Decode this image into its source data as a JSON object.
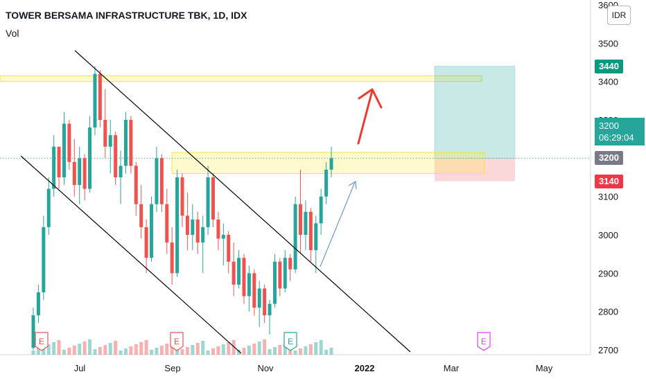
{
  "header": {
    "title": "TOWER BERSAMA INFRASTRUCTURE TBK, 1D, IDX",
    "indicator": "Vol"
  },
  "currency_button": "IDR",
  "price_tags": {
    "target": {
      "label": "3440",
      "value": 3440,
      "color": "#089981"
    },
    "current": {
      "label": "3200",
      "value": 3200,
      "color": "#787b86"
    },
    "stop": {
      "label": "3140",
      "value": 3140,
      "color": "#f23645"
    }
  },
  "current_tag": {
    "price": "3200",
    "countdown": "06:29:04"
  },
  "earnings_marker": "E",
  "chart_data": {
    "type": "candlestick",
    "title": "TOWER BERSAMA INFRASTRUCTURE TBK, 1D, IDX",
    "y_axis": {
      "min": 2700,
      "max": 3600,
      "ticks": [
        2700,
        2800,
        2900,
        3000,
        3100,
        3200,
        3300,
        3400,
        3500,
        3600
      ]
    },
    "x_axis": {
      "ticks": [
        "Jul",
        "Sep",
        "Nov",
        "2022",
        "Mar",
        "May"
      ]
    },
    "last_price": 3200,
    "ohlc_samples": [
      [
        2705,
        2810,
        2700,
        2790
      ],
      [
        2790,
        2870,
        2770,
        2850
      ],
      [
        2850,
        3050,
        2830,
        3020
      ],
      [
        3020,
        3150,
        3000,
        3120
      ],
      [
        3120,
        3260,
        3100,
        3230
      ],
      [
        3230,
        3220,
        3120,
        3150
      ],
      [
        3150,
        3320,
        3130,
        3290
      ],
      [
        3290,
        3300,
        3170,
        3190
      ],
      [
        3190,
        3250,
        3100,
        3130
      ],
      [
        3130,
        3230,
        3080,
        3200
      ],
      [
        3200,
        3210,
        3090,
        3120
      ],
      [
        3120,
        3310,
        3110,
        3280
      ],
      [
        3280,
        3440,
        3260,
        3420
      ],
      [
        3420,
        3430,
        3280,
        3300
      ],
      [
        3300,
        3380,
        3200,
        3230
      ],
      [
        3230,
        3300,
        3160,
        3260
      ],
      [
        3260,
        3270,
        3130,
        3150
      ],
      [
        3150,
        3220,
        3080,
        3180
      ],
      [
        3180,
        3320,
        3160,
        3300
      ],
      [
        3300,
        3310,
        3160,
        3180
      ],
      [
        3180,
        3190,
        3050,
        3080
      ],
      [
        3080,
        3130,
        2990,
        3020
      ],
      [
        3020,
        3040,
        2900,
        2940
      ],
      [
        2940,
        3100,
        2930,
        3080
      ],
      [
        3080,
        3230,
        3060,
        3200
      ],
      [
        3200,
        3210,
        3060,
        3080
      ],
      [
        3080,
        3120,
        2950,
        2980
      ],
      [
        2980,
        3020,
        2870,
        2900
      ],
      [
        2900,
        3170,
        2890,
        3150
      ],
      [
        3150,
        3160,
        3020,
        3050
      ],
      [
        3050,
        3110,
        2960,
        3000
      ],
      [
        3000,
        3080,
        2960,
        3040
      ],
      [
        3040,
        3060,
        2950,
        2980
      ],
      [
        2980,
        3050,
        2900,
        3020
      ],
      [
        3020,
        3180,
        3000,
        3150
      ],
      [
        3150,
        3160,
        3020,
        3040
      ],
      [
        3040,
        3060,
        2960,
        2990
      ],
      [
        2990,
        3030,
        2920,
        3000
      ],
      [
        3000,
        3010,
        2900,
        2930
      ],
      [
        2930,
        2980,
        2840,
        2870
      ],
      [
        2870,
        2960,
        2860,
        2940
      ],
      [
        2940,
        2950,
        2820,
        2840
      ],
      [
        2840,
        2920,
        2800,
        2900
      ],
      [
        2900,
        2910,
        2790,
        2810
      ],
      [
        2810,
        2880,
        2760,
        2860
      ],
      [
        2860,
        2870,
        2770,
        2790
      ],
      [
        2790,
        2830,
        2740,
        2820
      ],
      [
        2820,
        2950,
        2810,
        2930
      ],
      [
        2930,
        2940,
        2840,
        2860
      ],
      [
        2860,
        2960,
        2850,
        2940
      ],
      [
        2940,
        2950,
        2880,
        2910
      ],
      [
        2910,
        3100,
        2900,
        3080
      ],
      [
        3080,
        3170,
        2950,
        3000
      ],
      [
        3000,
        3090,
        2960,
        3060
      ],
      [
        3060,
        3070,
        2930,
        2960
      ],
      [
        2960,
        3050,
        2900,
        3030
      ],
      [
        3030,
        3120,
        3000,
        3100
      ],
      [
        3100,
        3190,
        3080,
        3170
      ],
      [
        3170,
        3230,
        3150,
        3200
      ]
    ],
    "annotations": {
      "resistance_zone_top": [
        3400,
        3415
      ],
      "breakout_zone": [
        3160,
        3215
      ],
      "long_position": {
        "entry": 3200,
        "target": 3440,
        "stop": 3140
      }
    }
  }
}
